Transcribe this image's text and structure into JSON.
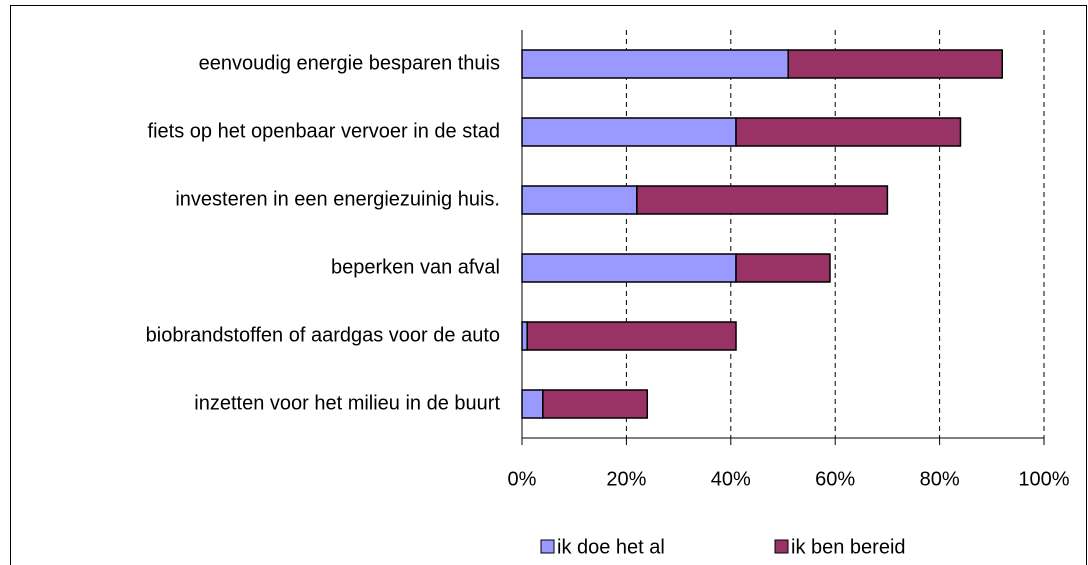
{
  "chart_data": {
    "type": "bar",
    "orientation": "horizontal",
    "stacked": true,
    "categories": [
      "eenvoudig energie besparen thuis",
      "fiets op het openbaar vervoer in de stad",
      "investeren in een energiezuinig huis.",
      "beperken van afval",
      "biobrandstoffen of aardgas voor de auto",
      "inzetten voor het milieu in de buurt"
    ],
    "series": [
      {
        "name": "ik doe het al",
        "color": "#9999ff",
        "values": [
          51,
          41,
          22,
          41,
          1,
          4
        ]
      },
      {
        "name": "ik ben bereid",
        "color": "#993366",
        "values": [
          41,
          43,
          48,
          18,
          40,
          20
        ]
      }
    ],
    "xlim": [
      0,
      100
    ],
    "xticks": [
      {
        "value": 0,
        "label": "0%"
      },
      {
        "value": 20,
        "label": "20%"
      },
      {
        "value": 40,
        "label": "40%"
      },
      {
        "value": 60,
        "label": "60%"
      },
      {
        "value": 80,
        "label": "80%"
      },
      {
        "value": 100,
        "label": "100%"
      }
    ],
    "grid": true,
    "legend": "bottom"
  }
}
